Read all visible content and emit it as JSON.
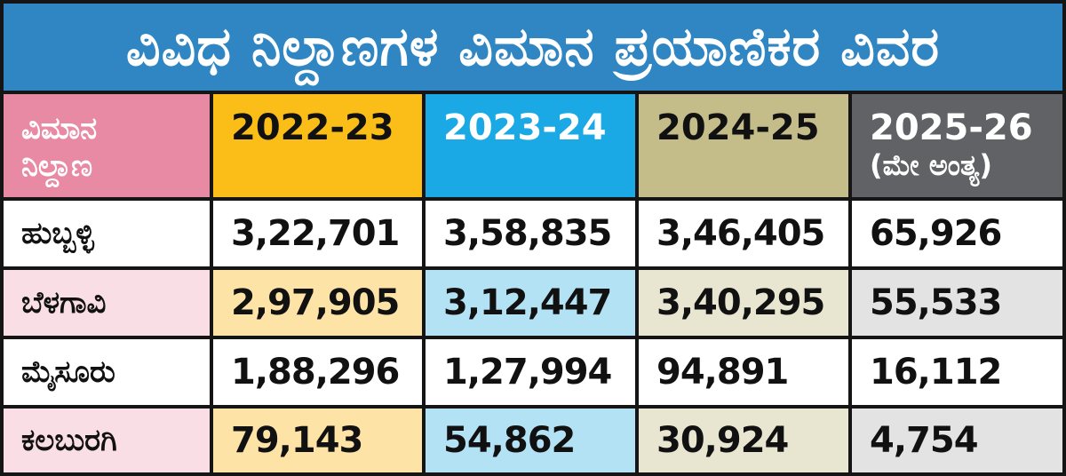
{
  "title": "ವಿವಿಧ ನಿಲ್ದಾಣಗಳ ವಿಮಾನ ಪ್ರಯಾಣಿಕರ ವಿವರ",
  "colors": {
    "title_bg": "#2f86c3",
    "col0_header": "#e98aa4",
    "col1_header": "#fbbd17",
    "col2_header": "#1aa9e4",
    "col3_header": "#c4bd8a",
    "col4_header": "#606266",
    "col0_tint": "#fadee6",
    "col1_tint": "#fde3a6",
    "col2_tint": "#b3e2f5",
    "col3_tint": "#e8e5d0",
    "col4_tint": "#e3e3e3",
    "white": "#ffffff"
  },
  "table": {
    "header": {
      "label_line1": "ವಿಮಾನ",
      "label_line2": "ನಿಲ್ದಾಣ",
      "years": [
        {
          "year": "2022-23",
          "sub": ""
        },
        {
          "year": "2023-24",
          "sub": ""
        },
        {
          "year": "2024-25",
          "sub": ""
        },
        {
          "year": "2025-26",
          "sub": "(ಮೇ ಅಂತ್ಯ)"
        }
      ]
    },
    "rows": [
      {
        "airport": "ಹುಬ್ಬಳ್ಳಿ",
        "values": [
          "3,22,701",
          "3,58,835",
          "3,46,405",
          "65,926"
        ]
      },
      {
        "airport": "ಬೆಳಗಾವಿ",
        "values": [
          "2,97,905",
          "3,12,447",
          "3,40,295",
          "55,533"
        ]
      },
      {
        "airport": "ಮೈಸೂರು",
        "values": [
          "1,88,296",
          "1,27,994",
          "94,891",
          "16,112"
        ]
      },
      {
        "airport": "ಕಲಬುರಗಿ",
        "values": [
          "79,143",
          "54,862",
          "30,924",
          "4,754"
        ]
      }
    ]
  }
}
